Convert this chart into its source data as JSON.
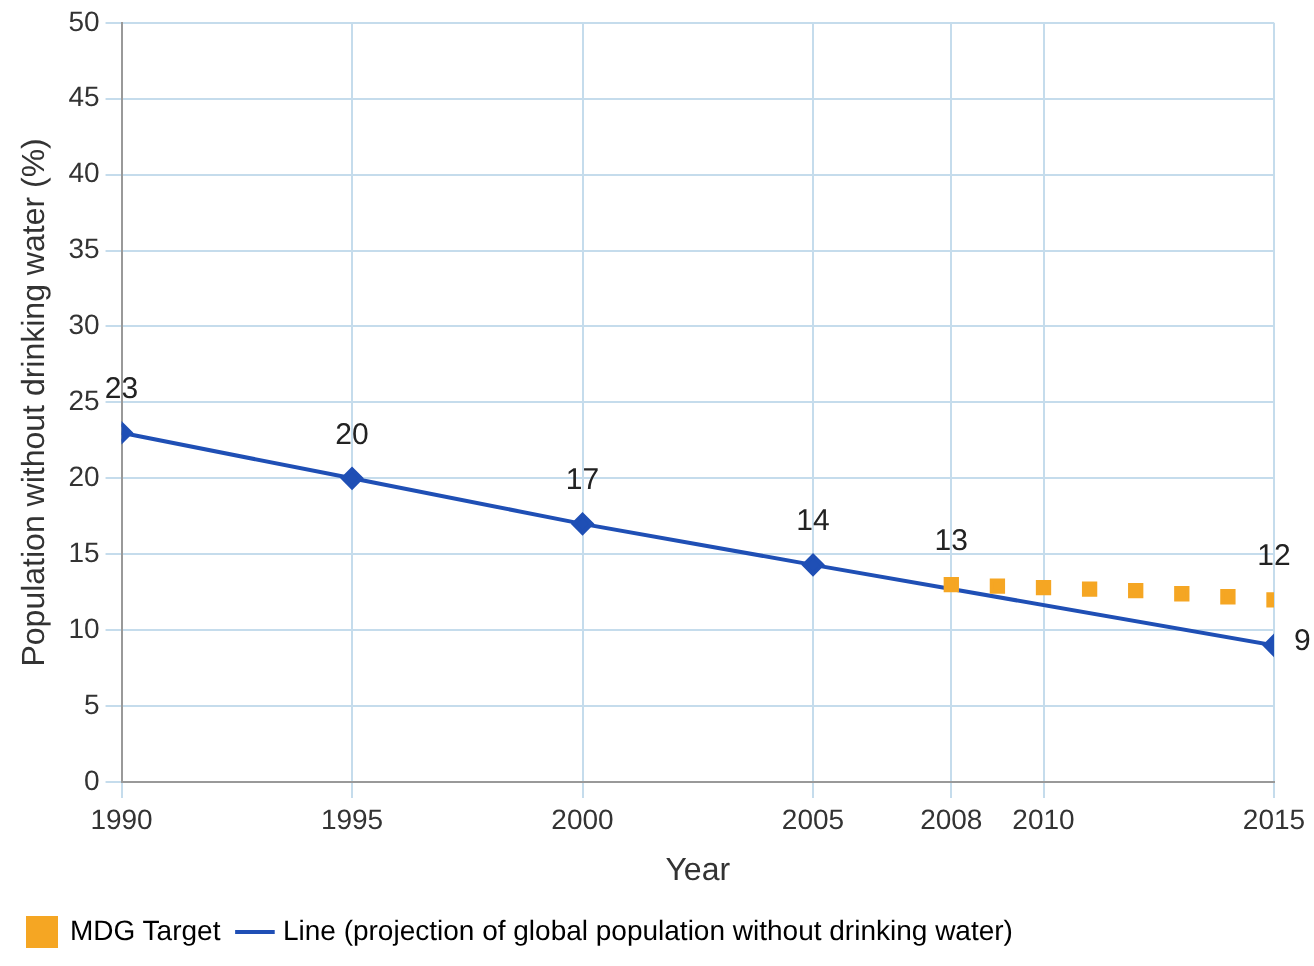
{
  "chart_data": {
    "type": "line",
    "xlabel": "Year",
    "ylabel": "Population without drinking water (%)",
    "xlim": [
      1990,
      2015
    ],
    "xticks": [
      1990,
      1995,
      2000,
      2005,
      2008,
      2010,
      2015
    ],
    "ylim": [
      0,
      50
    ],
    "yticks": [
      0,
      5,
      10,
      15,
      20,
      25,
      30,
      35,
      40,
      45,
      50
    ],
    "grid": true,
    "legend": "bottom left",
    "series": [
      {
        "name": "MDG Target",
        "type": "scatter",
        "marker": "square",
        "color": "#f5a623",
        "x": [
          2008,
          2009,
          2010,
          2011,
          2012,
          2013,
          2014,
          2015
        ],
        "values": [
          13,
          12.9,
          12.8,
          12.7,
          12.6,
          12.4,
          12.2,
          12
        ],
        "value_labels": [
          "13",
          null,
          null,
          null,
          null,
          null,
          null,
          "12"
        ]
      },
      {
        "name": "Line (projection of global population without drinking water)",
        "type": "line",
        "marker": "diamond",
        "color": "#1f4fb5",
        "x": [
          1990,
          1995,
          2000,
          2005,
          2015
        ],
        "values": [
          23,
          20,
          17,
          14.3,
          9
        ],
        "value_labels": [
          "23",
          "20",
          "17",
          "14",
          "9"
        ]
      }
    ]
  }
}
